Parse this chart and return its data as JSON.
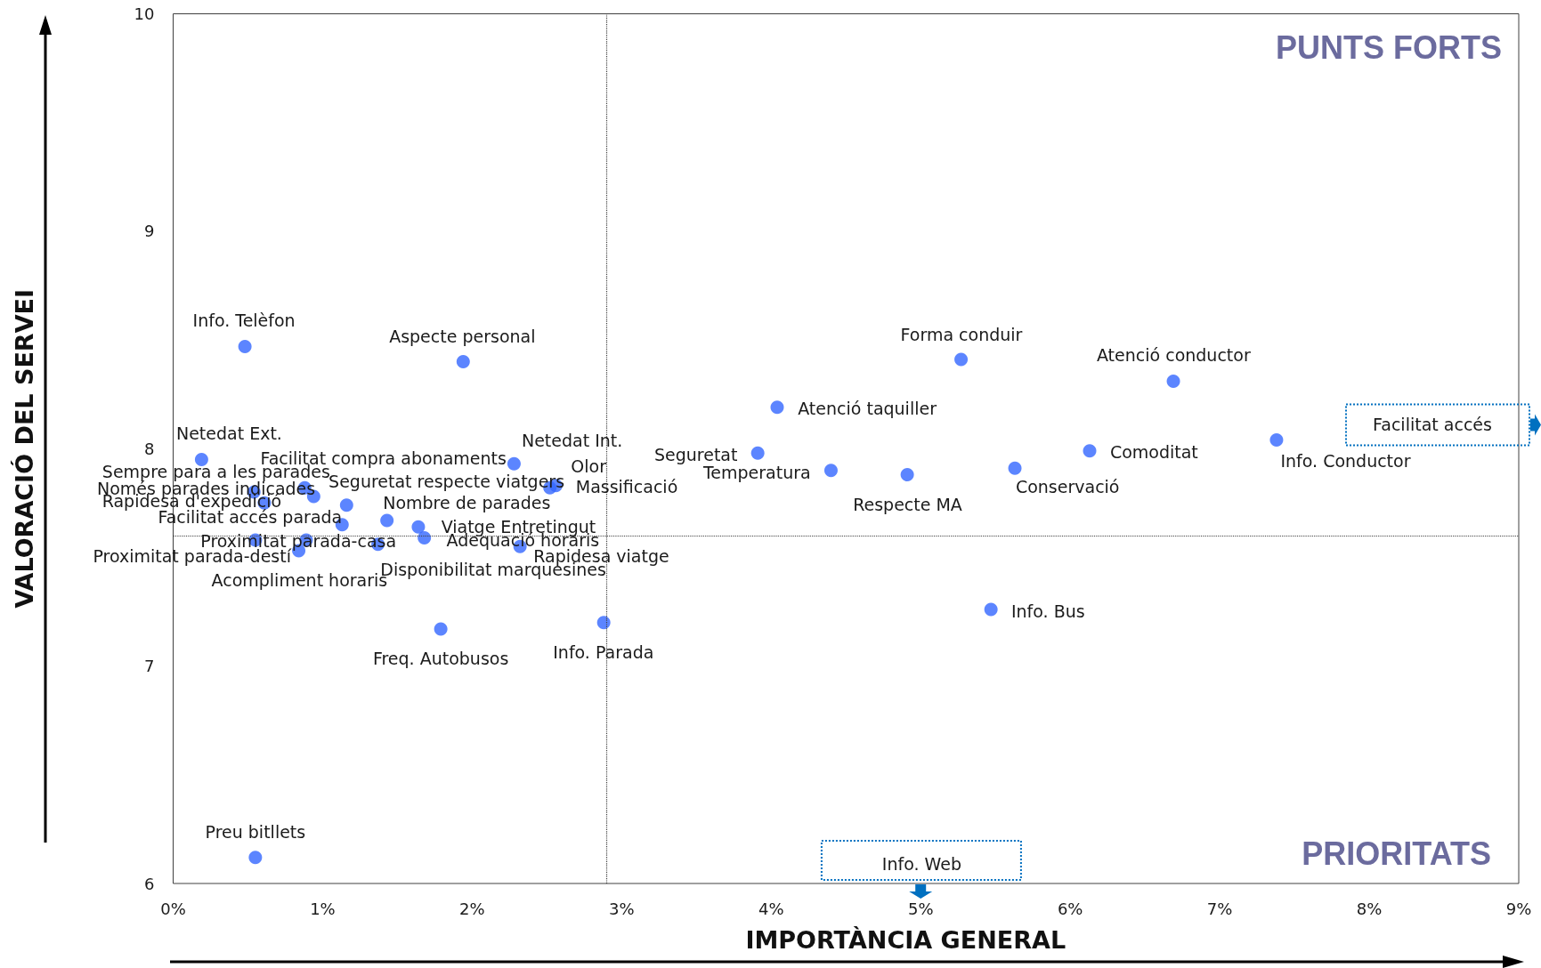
{
  "chart_data": {
    "type": "scatter",
    "xlabel": "IMPORTÀNCIA GENERAL",
    "ylabel": "VALORACIÓ DEL SERVEI",
    "x": [
      0.48,
      1.94,
      0.19,
      2.28,
      2.52,
      2.56,
      0.54,
      0.61,
      0.88,
      0.94,
      1.16,
      1.13,
      1.43,
      1.64,
      1.68,
      0.55,
      0.89,
      0.84,
      1.37,
      2.32,
      1.79,
      2.88,
      0.55,
      5.27,
      4.04,
      3.91,
      4.4,
      4.91,
      5.63,
      6.13,
      6.69,
      7.38,
      5.47
    ],
    "values": [
      8.47,
      8.4,
      7.95,
      7.93,
      7.82,
      7.83,
      7.8,
      7.75,
      7.82,
      7.78,
      7.74,
      7.65,
      7.67,
      7.64,
      7.59,
      7.58,
      7.58,
      7.53,
      7.56,
      7.55,
      7.17,
      7.2,
      6.12,
      8.41,
      8.19,
      7.98,
      7.9,
      7.88,
      7.91,
      7.99,
      8.31,
      8.04,
      7.26
    ],
    "color": "#3366ff",
    "marker": "circle",
    "xlim": [
      0,
      9
    ],
    "xticks": [
      {
        "value": 0,
        "label": "0%"
      },
      {
        "value": 1,
        "label": "1%"
      },
      {
        "value": 2,
        "label": "2%"
      },
      {
        "value": 3,
        "label": "3%"
      },
      {
        "value": 4,
        "label": "4%"
      },
      {
        "value": 5,
        "label": "5%"
      },
      {
        "value": 6,
        "label": "6%"
      },
      {
        "value": 7,
        "label": "7%"
      },
      {
        "value": 8,
        "label": "8%"
      },
      {
        "value": 9,
        "label": "9%"
      }
    ],
    "ylim": [
      6,
      10
    ],
    "yticks": [
      6,
      7,
      8,
      9,
      10
    ],
    "ref_lines": [
      {
        "axis": "x",
        "value": 2.9,
        "color": "#404040",
        "line_style": "dotted"
      },
      {
        "axis": "y",
        "value": 7.6,
        "color": "#404040",
        "line_style": "dotted"
      }
    ],
    "annotations": [
      {
        "text": "Info. Telèfon",
        "x": 0.48,
        "y": 8.47
      },
      {
        "text": "Aspecte personal",
        "x": 1.94,
        "y": 8.4
      },
      {
        "text": "Netedat Ext.",
        "x": 0.19,
        "y": 7.95
      },
      {
        "text": "Facilitat compra abonaments",
        "x": 2.28,
        "y": 7.93
      },
      {
        "text": "Netedat Int.",
        "x": 2.56,
        "y": 7.83
      },
      {
        "text": "Olor",
        "x": 2.52,
        "y": 7.82
      },
      {
        "text": "Massificació",
        "x": 2.56,
        "y": 7.83
      },
      {
        "text": "Seguretat respecte viatgers",
        "x": 0.88,
        "y": 7.82
      },
      {
        "text": "Sempre para a les parades",
        "x": 0.94,
        "y": 7.78
      },
      {
        "text": "Només parades indicades",
        "x": 0.54,
        "y": 7.8
      },
      {
        "text": "Rapidesa d'expedició",
        "x": 0.61,
        "y": 7.75
      },
      {
        "text": "Facilitat accés parada",
        "x": 1.13,
        "y": 7.65
      },
      {
        "text": "Nombre de parades",
        "x": 1.16,
        "y": 7.74
      },
      {
        "text": "Viatge Entretingut",
        "x": 1.64,
        "y": 7.64
      },
      {
        "text": "Adequació horaris",
        "x": 1.68,
        "y": 7.59
      },
      {
        "text": "Proximitat parada-casa",
        "x": 0.89,
        "y": 7.58
      },
      {
        "text": "Proximitat parada-destí",
        "x": 0.55,
        "y": 7.58
      },
      {
        "text": "Acompliment horaris",
        "x": 0.84,
        "y": 7.53
      },
      {
        "text": "Disponibilitat marquesines",
        "x": 1.37,
        "y": 7.56
      },
      {
        "text": "Rapidesa viatge",
        "x": 2.32,
        "y": 7.55
      },
      {
        "text": "Freq. Autobusos",
        "x": 1.79,
        "y": 7.17
      },
      {
        "text": "Info. Parada",
        "x": 2.88,
        "y": 7.2
      },
      {
        "text": "Preu bitllets",
        "x": 0.55,
        "y": 6.12
      },
      {
        "text": "Forma conduir",
        "x": 5.27,
        "y": 8.41
      },
      {
        "text": "Atenció taquiller",
        "x": 4.04,
        "y": 8.19
      },
      {
        "text": "Seguretat",
        "x": 3.91,
        "y": 7.98
      },
      {
        "text": "Temperatura",
        "x": 4.4,
        "y": 7.9
      },
      {
        "text": "Respecte MA",
        "x": 4.91,
        "y": 7.88
      },
      {
        "text": "Conservació",
        "x": 5.63,
        "y": 7.91
      },
      {
        "text": "Comoditat",
        "x": 6.13,
        "y": 7.99
      },
      {
        "text": "Atenció conductor",
        "x": 6.69,
        "y": 8.31
      },
      {
        "text": "Info. Conductor",
        "x": 7.38,
        "y": 8.04
      },
      {
        "text": "Info. Bus",
        "x": 5.47,
        "y": 7.26
      },
      "Facilitat accés",
      "Info. Web",
      "PUNTS FORTS",
      "PRIORITATS"
    ]
  }
}
